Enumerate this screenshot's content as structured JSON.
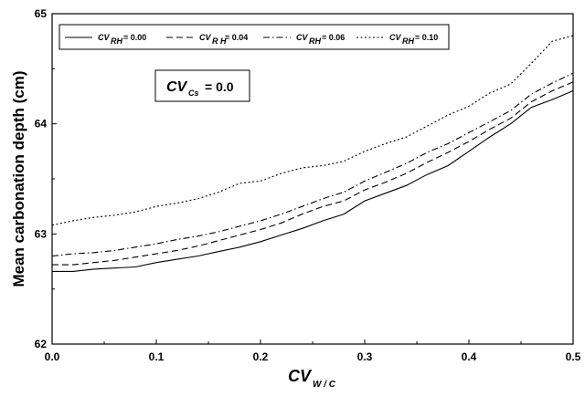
{
  "chart_data": {
    "type": "line",
    "xlabel_main": "CV",
    "xlabel_sub": "W / C",
    "ylabel": "Mean carbonation depth (cm)",
    "xlim": [
      0.0,
      0.5
    ],
    "ylim": [
      62,
      65
    ],
    "xticks": [
      0.0,
      0.1,
      0.2,
      0.3,
      0.4,
      0.5
    ],
    "xtick_labels": [
      "0.0",
      "0.1",
      "0.2",
      "0.3",
      "0.4",
      "0.5"
    ],
    "yticks": [
      62,
      63,
      64,
      65
    ],
    "ytick_labels": [
      "62",
      "63",
      "64",
      "65"
    ],
    "grid": false,
    "legend_position": "top",
    "annotation": {
      "main": "CV",
      "sub": "Cs",
      "value": "= 0.0"
    },
    "series": [
      {
        "legend_var": "CV",
        "legend_sub": "RH",
        "legend_value": "= 0.00",
        "dash": "solid",
        "x": [
          0.0,
          0.02,
          0.04,
          0.06,
          0.08,
          0.1,
          0.12,
          0.14,
          0.16,
          0.18,
          0.2,
          0.22,
          0.24,
          0.26,
          0.28,
          0.3,
          0.32,
          0.34,
          0.36,
          0.38,
          0.4,
          0.42,
          0.44,
          0.46,
          0.48,
          0.5
        ],
        "y": [
          62.66,
          62.66,
          62.68,
          62.69,
          62.7,
          62.74,
          62.77,
          62.8,
          62.84,
          62.88,
          62.93,
          62.99,
          63.05,
          63.12,
          63.18,
          63.3,
          63.37,
          63.44,
          63.54,
          63.62,
          63.75,
          63.88,
          64.0,
          64.15,
          64.22,
          64.3
        ]
      },
      {
        "legend_var": "CV",
        "legend_sub": "R H",
        "legend_value": "= 0.04",
        "dash": "dashed",
        "x": [
          0.0,
          0.02,
          0.04,
          0.06,
          0.08,
          0.1,
          0.12,
          0.14,
          0.16,
          0.18,
          0.2,
          0.22,
          0.24,
          0.26,
          0.28,
          0.3,
          0.32,
          0.34,
          0.36,
          0.38,
          0.4,
          0.42,
          0.44,
          0.46,
          0.48,
          0.5
        ],
        "y": [
          62.72,
          62.72,
          62.74,
          62.76,
          62.79,
          62.82,
          62.85,
          62.89,
          62.94,
          62.99,
          63.04,
          63.1,
          63.18,
          63.25,
          63.3,
          63.4,
          63.47,
          63.55,
          63.65,
          63.74,
          63.84,
          63.95,
          64.05,
          64.2,
          64.3,
          64.38
        ]
      },
      {
        "legend_var": "CV",
        "legend_sub": "RH",
        "legend_value": "= 0.06",
        "dash": "dashdot",
        "x": [
          0.0,
          0.02,
          0.04,
          0.06,
          0.08,
          0.1,
          0.12,
          0.14,
          0.16,
          0.18,
          0.2,
          0.22,
          0.24,
          0.26,
          0.28,
          0.3,
          0.32,
          0.34,
          0.36,
          0.38,
          0.4,
          0.42,
          0.44,
          0.46,
          0.48,
          0.5
        ],
        "y": [
          62.8,
          62.82,
          62.83,
          62.85,
          62.88,
          62.91,
          62.95,
          62.98,
          63.02,
          63.07,
          63.12,
          63.18,
          63.25,
          63.32,
          63.38,
          63.48,
          63.56,
          63.64,
          63.74,
          63.82,
          63.92,
          64.02,
          64.12,
          64.27,
          64.37,
          64.46
        ]
      },
      {
        "legend_var": "CV",
        "legend_sub": "RH",
        "legend_value": "= 0.10",
        "dash": "dotted",
        "x": [
          0.0,
          0.02,
          0.04,
          0.06,
          0.08,
          0.1,
          0.12,
          0.14,
          0.16,
          0.18,
          0.2,
          0.22,
          0.24,
          0.26,
          0.28,
          0.3,
          0.32,
          0.34,
          0.36,
          0.38,
          0.4,
          0.42,
          0.44,
          0.46,
          0.48,
          0.5
        ],
        "y": [
          63.08,
          63.12,
          63.15,
          63.17,
          63.2,
          63.25,
          63.28,
          63.32,
          63.38,
          63.46,
          63.48,
          63.55,
          63.6,
          63.62,
          63.66,
          63.75,
          63.82,
          63.88,
          63.98,
          64.08,
          64.16,
          64.28,
          64.36,
          64.55,
          64.75,
          64.8
        ]
      }
    ]
  }
}
